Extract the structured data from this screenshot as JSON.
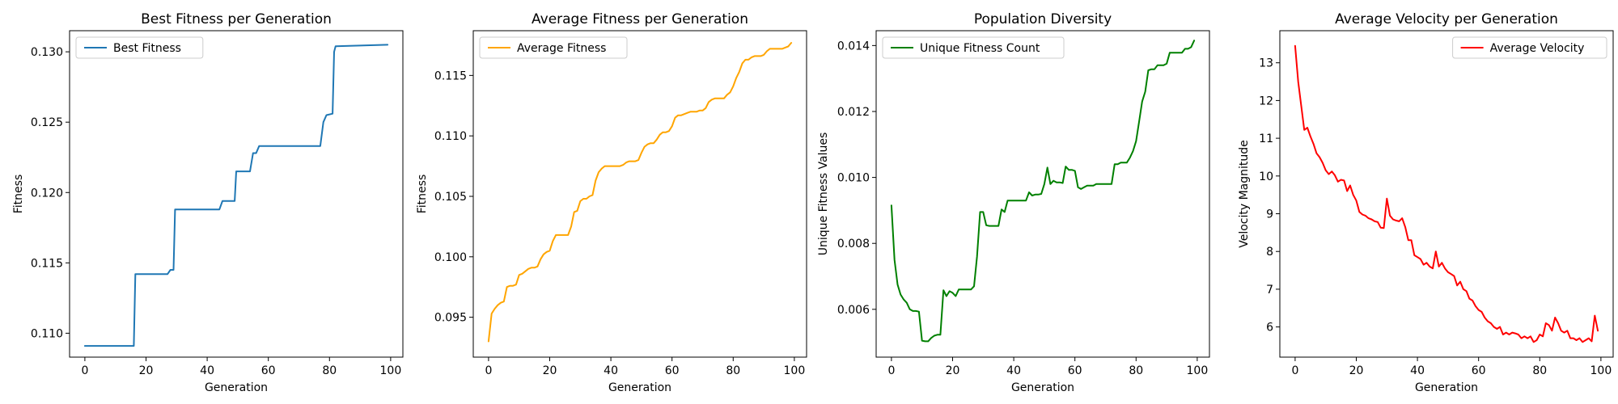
{
  "chart_data": [
    {
      "type": "line",
      "title": "Best Fitness per Generation",
      "xlabel": "Generation",
      "ylabel": "Fitness",
      "xlim": [
        -5,
        104
      ],
      "ylim": [
        0.1083,
        0.1315
      ],
      "xticks": [
        0,
        20,
        40,
        60,
        80,
        100
      ],
      "xtick_labels": [
        "0",
        "20",
        "40",
        "60",
        "80",
        "100"
      ],
      "yticks": [
        0.11,
        0.115,
        0.12,
        0.125,
        0.13
      ],
      "ytick_labels": [
        "0.110",
        "0.115",
        "0.120",
        "0.125",
        "0.130"
      ],
      "grid": false,
      "legend_position": "upper-left",
      "series": [
        {
          "name": "Best Fitness",
          "color": "#1f77b4",
          "x": [
            0,
            16,
            16.5,
            27,
            28,
            29,
            29.5,
            44,
            45,
            49,
            49.5,
            54,
            55,
            56,
            57,
            77,
            78,
            79,
            81,
            81.5,
            82,
            99
          ],
          "y": [
            0.1091,
            0.1091,
            0.1142,
            0.1142,
            0.1145,
            0.1145,
            0.1188,
            0.1188,
            0.1194,
            0.1194,
            0.1215,
            0.1215,
            0.1228,
            0.1228,
            0.1233,
            0.1233,
            0.125,
            0.1255,
            0.1256,
            0.13,
            0.1304,
            0.1305
          ]
        }
      ]
    },
    {
      "type": "line",
      "title": "Average Fitness per Generation",
      "xlabel": "Generation",
      "ylabel": "Fitness",
      "xlim": [
        -5,
        104
      ],
      "ylim": [
        0.0917,
        0.1187
      ],
      "xticks": [
        0,
        20,
        40,
        60,
        80,
        100
      ],
      "xtick_labels": [
        "0",
        "20",
        "40",
        "60",
        "80",
        "100"
      ],
      "yticks": [
        0.095,
        0.1,
        0.105,
        0.11,
        0.115
      ],
      "ytick_labels": [
        "0.095",
        "0.100",
        "0.105",
        "0.110",
        "0.115"
      ],
      "grid": false,
      "legend_position": "upper-left",
      "series": [
        {
          "name": "Average Fitness",
          "color": "#ffa500",
          "x": [
            0,
            1,
            2,
            3,
            4,
            5,
            6,
            7,
            8,
            9,
            10,
            11,
            12,
            13,
            14,
            15,
            16,
            17,
            18,
            19,
            20,
            21,
            22,
            23,
            24,
            25,
            26,
            27,
            28,
            29,
            30,
            31,
            32,
            33,
            34,
            35,
            36,
            37,
            38,
            39,
            40,
            41,
            42,
            43,
            44,
            45,
            46,
            47,
            48,
            49,
            50,
            51,
            52,
            53,
            54,
            55,
            56,
            57,
            58,
            59,
            60,
            61,
            62,
            63,
            64,
            65,
            66,
            67,
            68,
            69,
            70,
            71,
            72,
            73,
            74,
            75,
            76,
            77,
            78,
            79,
            80,
            81,
            82,
            83,
            84,
            85,
            86,
            87,
            88,
            89,
            90,
            91,
            92,
            93,
            94,
            95,
            96,
            97,
            98,
            99
          ],
          "y": [
            0.093,
            0.0953,
            0.0957,
            0.096,
            0.0962,
            0.0963,
            0.0975,
            0.0976,
            0.0976,
            0.0977,
            0.0985,
            0.0986,
            0.0988,
            0.099,
            0.0991,
            0.0991,
            0.0992,
            0.0998,
            0.1002,
            0.1004,
            0.1005,
            0.1013,
            0.1018,
            0.1018,
            0.1018,
            0.1018,
            0.1018,
            0.1025,
            0.1037,
            0.1038,
            0.1046,
            0.1048,
            0.1048,
            0.105,
            0.1051,
            0.1063,
            0.107,
            0.1073,
            0.1075,
            0.1075,
            0.1075,
            0.1075,
            0.1075,
            0.1075,
            0.1076,
            0.1078,
            0.1079,
            0.1079,
            0.1079,
            0.108,
            0.1086,
            0.1091,
            0.1093,
            0.1094,
            0.1094,
            0.1097,
            0.1101,
            0.1103,
            0.1103,
            0.1104,
            0.1108,
            0.1115,
            0.1117,
            0.1117,
            0.1118,
            0.1119,
            0.112,
            0.112,
            0.112,
            0.1121,
            0.1121,
            0.1123,
            0.1128,
            0.113,
            0.1131,
            0.1131,
            0.1131,
            0.1131,
            0.1134,
            0.1136,
            0.1141,
            0.1148,
            0.1153,
            0.116,
            0.1163,
            0.1163,
            0.1165,
            0.1166,
            0.1166,
            0.1166,
            0.1167,
            0.117,
            0.1172,
            0.1172,
            0.1172,
            0.1172,
            0.1172,
            0.1173,
            0.1174,
            0.1177
          ]
        }
      ]
    },
    {
      "type": "line",
      "title": "Population Diversity",
      "xlabel": "Generation",
      "ylabel": "Unique Fitness Values",
      "xlim": [
        -5,
        104
      ],
      "ylim": [
        0.00455,
        0.01445
      ],
      "xticks": [
        0,
        20,
        40,
        60,
        80,
        100
      ],
      "xtick_labels": [
        "0",
        "20",
        "40",
        "60",
        "80",
        "100"
      ],
      "yticks": [
        0.006,
        0.008,
        0.01,
        0.012,
        0.014
      ],
      "ytick_labels": [
        "0.006",
        "0.008",
        "0.010",
        "0.012",
        "0.014"
      ],
      "grid": false,
      "legend_position": "upper-left",
      "series": [
        {
          "name": "Unique Fitness Count",
          "color": "#008000",
          "x": [
            0,
            1,
            2,
            3,
            4,
            5,
            6,
            7,
            8,
            9,
            10,
            11,
            12,
            13,
            14,
            15,
            16,
            17,
            18,
            19,
            20,
            21,
            22,
            23,
            24,
            25,
            26,
            27,
            28,
            29,
            30,
            31,
            32,
            33,
            34,
            35,
            36,
            37,
            38,
            39,
            40,
            41,
            42,
            43,
            44,
            45,
            46,
            47,
            48,
            49,
            50,
            51,
            52,
            53,
            54,
            55,
            56,
            57,
            58,
            59,
            60,
            61,
            62,
            63,
            64,
            65,
            66,
            67,
            68,
            69,
            70,
            71,
            72,
            73,
            74,
            75,
            76,
            77,
            78,
            79,
            80,
            81,
            82,
            83,
            84,
            85,
            86,
            87,
            88,
            89,
            90,
            91,
            92,
            93,
            94,
            95,
            96,
            97,
            98,
            99
          ],
          "y": [
            0.00915,
            0.0075,
            0.00675,
            0.00645,
            0.0063,
            0.0062,
            0.006,
            0.00595,
            0.00595,
            0.00593,
            0.00505,
            0.00503,
            0.00503,
            0.00513,
            0.0052,
            0.00523,
            0.00523,
            0.00658,
            0.0064,
            0.00655,
            0.0065,
            0.0064,
            0.0066,
            0.0066,
            0.0066,
            0.0066,
            0.0066,
            0.0067,
            0.0076,
            0.00895,
            0.00895,
            0.00855,
            0.00853,
            0.00853,
            0.00853,
            0.00853,
            0.00903,
            0.00895,
            0.0093,
            0.0093,
            0.0093,
            0.0093,
            0.0093,
            0.0093,
            0.0093,
            0.00955,
            0.00945,
            0.00948,
            0.00948,
            0.0095,
            0.0098,
            0.0103,
            0.0098,
            0.0099,
            0.00985,
            0.00985,
            0.00983,
            0.01033,
            0.01023,
            0.01023,
            0.0102,
            0.0097,
            0.00965,
            0.0097,
            0.00975,
            0.00975,
            0.00975,
            0.0098,
            0.0098,
            0.0098,
            0.0098,
            0.0098,
            0.0098,
            0.0104,
            0.0104,
            0.01045,
            0.01045,
            0.01045,
            0.0106,
            0.0108,
            0.0111,
            0.0117,
            0.0123,
            0.0126,
            0.01325,
            0.01328,
            0.01328,
            0.0134,
            0.0134,
            0.0134,
            0.01345,
            0.01378,
            0.01378,
            0.01378,
            0.01378,
            0.01378,
            0.0139,
            0.0139,
            0.01395,
            0.01415
          ]
        }
      ]
    },
    {
      "type": "line",
      "title": "Average Velocity per Generation",
      "xlabel": "Generation",
      "ylabel": "Velocity Magnitude",
      "xlim": [
        -5,
        104
      ],
      "ylim": [
        5.2,
        13.85
      ],
      "xticks": [
        0,
        20,
        40,
        60,
        80,
        100
      ],
      "xtick_labels": [
        "0",
        "20",
        "40",
        "60",
        "80",
        "100"
      ],
      "yticks": [
        6,
        7,
        8,
        9,
        10,
        11,
        12,
        13
      ],
      "ytick_labels": [
        "6",
        "7",
        "8",
        "9",
        "10",
        "11",
        "12",
        "13"
      ],
      "grid": false,
      "legend_position": "upper-right",
      "series": [
        {
          "name": "Average Velocity",
          "color": "#ff0000",
          "x": [
            0,
            1,
            2,
            3,
            4,
            5,
            6,
            7,
            8,
            9,
            10,
            11,
            12,
            13,
            14,
            15,
            16,
            17,
            18,
            19,
            20,
            21,
            22,
            23,
            24,
            25,
            26,
            27,
            28,
            29,
            30,
            31,
            32,
            33,
            34,
            35,
            36,
            37,
            38,
            39,
            40,
            41,
            42,
            43,
            44,
            45,
            46,
            47,
            48,
            49,
            50,
            51,
            52,
            53,
            54,
            55,
            56,
            57,
            58,
            59,
            60,
            61,
            62,
            63,
            64,
            65,
            66,
            67,
            68,
            69,
            70,
            71,
            72,
            73,
            74,
            75,
            76,
            77,
            78,
            79,
            80,
            81,
            82,
            83,
            84,
            85,
            86,
            87,
            88,
            89,
            90,
            91,
            92,
            93,
            94,
            95,
            96,
            97,
            98,
            99
          ],
          "y": [
            13.45,
            12.5,
            11.85,
            11.22,
            11.28,
            11.05,
            10.85,
            10.6,
            10.5,
            10.35,
            10.15,
            10.05,
            10.12,
            10.02,
            9.85,
            9.9,
            9.88,
            9.6,
            9.75,
            9.5,
            9.35,
            9.05,
            8.98,
            8.95,
            8.88,
            8.85,
            8.8,
            8.78,
            8.63,
            8.62,
            9.4,
            8.95,
            8.85,
            8.82,
            8.8,
            8.88,
            8.65,
            8.3,
            8.3,
            7.9,
            7.85,
            7.8,
            7.65,
            7.7,
            7.6,
            7.55,
            8.0,
            7.6,
            7.7,
            7.55,
            7.45,
            7.4,
            7.35,
            7.1,
            7.2,
            7.0,
            6.95,
            6.75,
            6.7,
            6.55,
            6.45,
            6.4,
            6.25,
            6.15,
            6.1,
            6.0,
            5.95,
            6.0,
            5.8,
            5.85,
            5.8,
            5.85,
            5.83,
            5.8,
            5.7,
            5.75,
            5.7,
            5.75,
            5.6,
            5.65,
            5.8,
            5.75,
            6.1,
            6.05,
            5.9,
            6.25,
            6.1,
            5.9,
            5.85,
            5.9,
            5.7,
            5.7,
            5.65,
            5.7,
            5.6,
            5.65,
            5.7,
            5.62,
            6.3,
            5.9
          ]
        }
      ]
    }
  ]
}
